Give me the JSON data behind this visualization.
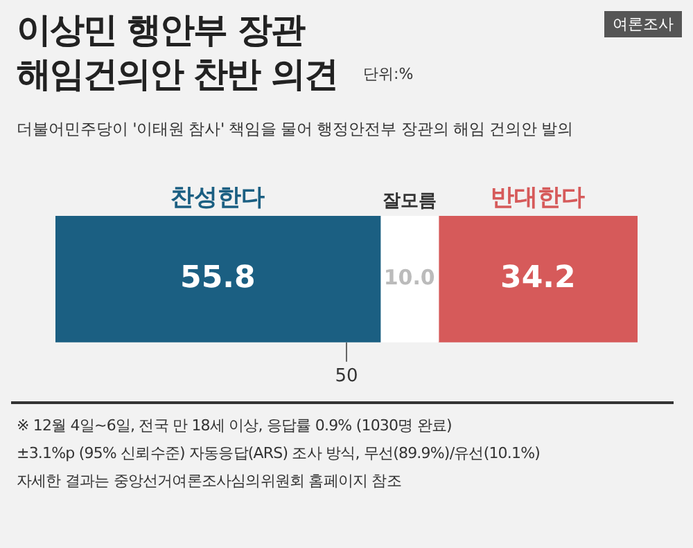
{
  "chart_data": {
    "type": "bar",
    "orientation": "horizontal",
    "stacked": true,
    "title": "이상민 행안부 장관\n해임건의안 찬반 의견",
    "subtitle": "더불어민주당이 '이태원 참사' 책임을 물어 행정안전부 장관의 해임 건의안 발의",
    "categories": [
      null
    ],
    "series": [
      {
        "name": "찬성한다",
        "color": "#1b5f82",
        "values": [
          55.8
        ],
        "value_labels": [
          "55.8"
        ]
      },
      {
        "name": "잘모름",
        "color": "#ffffff",
        "values": [
          10.0
        ],
        "value_labels": [
          "10.0"
        ]
      },
      {
        "name": "반대한다",
        "color": "#d65a5a",
        "values": [
          34.2
        ],
        "value_labels": [
          "34.2"
        ]
      }
    ],
    "xlim": [
      0,
      100
    ],
    "xticks": [
      50
    ],
    "legend": false,
    "annotations": [
      "여론조사",
      "단위:%",
      "※ 12월 4일~6일, 전국 만 18세 이상, 응답률 0.9% (1030명 완료)",
      "±3.1%p (95% 신뢰수준) 자동응답(ARS) 조사 방식, 무선(89.9%)/유선(10.1%)",
      "자세한 결과는 중앙선거여론조사심의위원회 홈페이지 참조"
    ]
  }
}
